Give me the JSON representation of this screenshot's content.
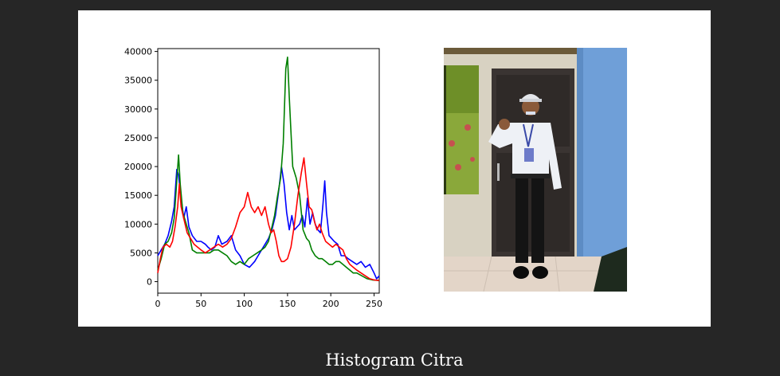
{
  "caption": "Histogram Citra",
  "chart_data": {
    "type": "line",
    "title": "",
    "xlabel": "",
    "ylabel": "",
    "xlim": [
      0,
      256
    ],
    "ylim": [
      -2000,
      40500
    ],
    "x_ticks": [
      0,
      50,
      100,
      150,
      200,
      250
    ],
    "y_ticks": [
      0,
      5000,
      10000,
      15000,
      20000,
      25000,
      30000,
      35000,
      40000
    ],
    "grid": false,
    "series": [
      {
        "color": "#0000ff",
        "points": [
          [
            0,
            4500
          ],
          [
            4,
            5500
          ],
          [
            8,
            6500
          ],
          [
            12,
            8000
          ],
          [
            16,
            10500
          ],
          [
            19,
            13000
          ],
          [
            22,
            19500
          ],
          [
            24,
            18500
          ],
          [
            27,
            14500
          ],
          [
            30,
            11000
          ],
          [
            33,
            13000
          ],
          [
            36,
            9500
          ],
          [
            40,
            8000
          ],
          [
            45,
            7000
          ],
          [
            50,
            7000
          ],
          [
            55,
            6500
          ],
          [
            58,
            6000
          ],
          [
            62,
            5500
          ],
          [
            66,
            6000
          ],
          [
            70,
            8000
          ],
          [
            74,
            6500
          ],
          [
            80,
            7000
          ],
          [
            85,
            8000
          ],
          [
            90,
            5500
          ],
          [
            95,
            4500
          ],
          [
            100,
            3000
          ],
          [
            106,
            2500
          ],
          [
            112,
            3500
          ],
          [
            118,
            5000
          ],
          [
            124,
            6500
          ],
          [
            128,
            7500
          ],
          [
            132,
            9000
          ],
          [
            136,
            11500
          ],
          [
            140,
            16000
          ],
          [
            143,
            20000
          ],
          [
            146,
            17000
          ],
          [
            149,
            12000
          ],
          [
            152,
            9000
          ],
          [
            155,
            11500
          ],
          [
            158,
            9000
          ],
          [
            161,
            9500
          ],
          [
            164,
            10000
          ],
          [
            167,
            11500
          ],
          [
            170,
            9500
          ],
          [
            173,
            14500
          ],
          [
            176,
            10000
          ],
          [
            179,
            12000
          ],
          [
            182,
            10000
          ],
          [
            185,
            9000
          ],
          [
            188,
            8500
          ],
          [
            191,
            13500
          ],
          [
            193,
            17500
          ],
          [
            195,
            12000
          ],
          [
            198,
            8000
          ],
          [
            201,
            7500
          ],
          [
            204,
            7000
          ],
          [
            208,
            6500
          ],
          [
            212,
            4500
          ],
          [
            216,
            4500
          ],
          [
            220,
            4000
          ],
          [
            225,
            3500
          ],
          [
            230,
            3000
          ],
          [
            235,
            3500
          ],
          [
            240,
            2500
          ],
          [
            245,
            3000
          ],
          [
            250,
            1500
          ],
          [
            253,
            500
          ],
          [
            256,
            1000
          ]
        ]
      },
      {
        "color": "#008000",
        "points": [
          [
            0,
            2000
          ],
          [
            4,
            4000
          ],
          [
            8,
            6500
          ],
          [
            12,
            7000
          ],
          [
            16,
            8500
          ],
          [
            19,
            11000
          ],
          [
            22,
            17500
          ],
          [
            24,
            22000
          ],
          [
            26,
            17000
          ],
          [
            29,
            12000
          ],
          [
            33,
            10000
          ],
          [
            36,
            8500
          ],
          [
            40,
            5500
          ],
          [
            45,
            5000
          ],
          [
            50,
            5000
          ],
          [
            55,
            5000
          ],
          [
            60,
            5000
          ],
          [
            65,
            5500
          ],
          [
            70,
            5500
          ],
          [
            75,
            5000
          ],
          [
            80,
            4500
          ],
          [
            85,
            3500
          ],
          [
            90,
            3000
          ],
          [
            95,
            3500
          ],
          [
            100,
            3000
          ],
          [
            105,
            4000
          ],
          [
            110,
            4500
          ],
          [
            115,
            5000
          ],
          [
            120,
            5500
          ],
          [
            124,
            6000
          ],
          [
            128,
            7000
          ],
          [
            132,
            9500
          ],
          [
            135,
            11500
          ],
          [
            138,
            14500
          ],
          [
            142,
            18000
          ],
          [
            145,
            24000
          ],
          [
            148,
            37000
          ],
          [
            150,
            39000
          ],
          [
            152,
            32000
          ],
          [
            154,
            26000
          ],
          [
            156,
            20000
          ],
          [
            160,
            18000
          ],
          [
            164,
            15000
          ],
          [
            168,
            9000
          ],
          [
            172,
            7500
          ],
          [
            175,
            7000
          ],
          [
            178,
            5500
          ],
          [
            182,
            4500
          ],
          [
            186,
            4000
          ],
          [
            190,
            4000
          ],
          [
            194,
            3500
          ],
          [
            198,
            3000
          ],
          [
            202,
            3000
          ],
          [
            206,
            3500
          ],
          [
            210,
            3500
          ],
          [
            214,
            3000
          ],
          [
            218,
            2500
          ],
          [
            222,
            2000
          ],
          [
            226,
            1500
          ],
          [
            230,
            1500
          ],
          [
            236,
            1000
          ],
          [
            242,
            500
          ],
          [
            248,
            300
          ],
          [
            256,
            200
          ]
        ]
      },
      {
        "color": "#ff0000",
        "points": [
          [
            0,
            1500
          ],
          [
            3,
            4000
          ],
          [
            6,
            6000
          ],
          [
            10,
            6500
          ],
          [
            14,
            6000
          ],
          [
            17,
            7000
          ],
          [
            20,
            9500
          ],
          [
            23,
            13000
          ],
          [
            25,
            17000
          ],
          [
            27,
            13000
          ],
          [
            30,
            11000
          ],
          [
            34,
            8500
          ],
          [
            38,
            7500
          ],
          [
            42,
            6500
          ],
          [
            46,
            6000
          ],
          [
            50,
            5500
          ],
          [
            55,
            5000
          ],
          [
            60,
            5500
          ],
          [
            65,
            6000
          ],
          [
            70,
            6500
          ],
          [
            75,
            6000
          ],
          [
            80,
            6500
          ],
          [
            85,
            7500
          ],
          [
            90,
            9500
          ],
          [
            95,
            12000
          ],
          [
            100,
            13000
          ],
          [
            104,
            15500
          ],
          [
            108,
            13000
          ],
          [
            112,
            12000
          ],
          [
            116,
            13000
          ],
          [
            120,
            11500
          ],
          [
            124,
            13000
          ],
          [
            128,
            10000
          ],
          [
            131,
            8500
          ],
          [
            134,
            9000
          ],
          [
            137,
            7000
          ],
          [
            140,
            4500
          ],
          [
            143,
            3500
          ],
          [
            146,
            3500
          ],
          [
            150,
            4000
          ],
          [
            154,
            6000
          ],
          [
            158,
            10000
          ],
          [
            162,
            15000
          ],
          [
            166,
            19000
          ],
          [
            169,
            21500
          ],
          [
            172,
            17000
          ],
          [
            175,
            13000
          ],
          [
            178,
            12500
          ],
          [
            181,
            10500
          ],
          [
            184,
            9000
          ],
          [
            187,
            10000
          ],
          [
            190,
            8500
          ],
          [
            194,
            7000
          ],
          [
            198,
            6500
          ],
          [
            202,
            6000
          ],
          [
            206,
            6500
          ],
          [
            210,
            6000
          ],
          [
            214,
            5500
          ],
          [
            218,
            4000
          ],
          [
            222,
            3000
          ],
          [
            226,
            2500
          ],
          [
            230,
            2000
          ],
          [
            235,
            1500
          ],
          [
            240,
            1000
          ],
          [
            245,
            500
          ],
          [
            250,
            300
          ],
          [
            256,
            200
          ]
        ]
      }
    ]
  }
}
